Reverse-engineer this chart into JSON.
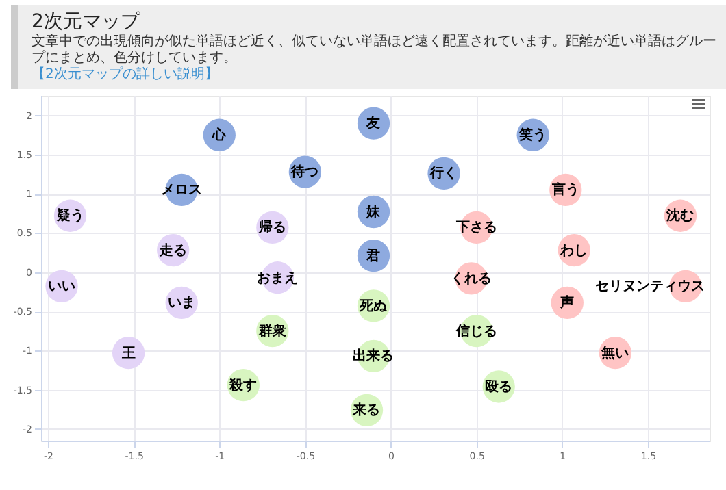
{
  "chart_data": {
    "type": "scatter",
    "title": "2次元マップ",
    "subtitle": "文章中での出現傾向が似た単語ほど近く、似ていない単語ほど遠く配置されています。距離が近い単語はグループにまとめ、色分けしています。",
    "xlim": [
      -2.04,
      1.86
    ],
    "ylim": [
      -2.15,
      2.25
    ],
    "xticks": [
      -2,
      -1.5,
      -1,
      -0.5,
      0,
      0.5,
      1,
      1.5
    ],
    "yticks": [
      -2,
      -1.5,
      -1,
      -0.5,
      0,
      0.5,
      1,
      1.5,
      2
    ],
    "grid": true,
    "marker": "circle",
    "series": [
      {
        "color": "#8eaadf",
        "x": [
          -0.1,
          0.83,
          -1.0,
          -0.5,
          0.31,
          -1.22,
          -0.1,
          -0.1
        ],
        "values": [
          1.9,
          1.75,
          1.75,
          1.28,
          1.26,
          1.05,
          0.77,
          0.21
        ]
      },
      {
        "color": "#ffc4c4",
        "x": [
          1.02,
          0.5,
          1.69,
          1.07,
          0.47,
          1.72,
          1.03,
          1.31
        ],
        "values": [
          1.05,
          0.57,
          0.72,
          0.28,
          -0.08,
          -0.18,
          -0.39,
          -1.03
        ]
      },
      {
        "color": "#e3d4f7",
        "x": [
          -1.87,
          -0.69,
          -1.27,
          -0.66,
          -1.92,
          -1.22,
          -1.53
        ],
        "values": [
          0.72,
          0.57,
          0.28,
          -0.07,
          -0.18,
          -0.39,
          -1.03
        ]
      },
      {
        "color": "#d8f5c0",
        "x": [
          -0.1,
          -0.69,
          0.5,
          -0.1,
          -0.86,
          0.63,
          -0.14
        ],
        "values": [
          -0.43,
          -0.75,
          -0.75,
          -1.07,
          -1.44,
          -1.46,
          -1.76
        ]
      }
    ],
    "annotations": [
      "【2次元マップの詳しい説明】",
      {
        "text": "友",
        "x": -0.1,
        "y": 1.9
      },
      {
        "text": "笑う",
        "x": 0.83,
        "y": 1.75
      },
      {
        "text": "心",
        "x": -1.0,
        "y": 1.75
      },
      {
        "text": "待つ",
        "x": -0.5,
        "y": 1.28
      },
      {
        "text": "行く",
        "x": 0.31,
        "y": 1.26
      },
      {
        "text": "メロス",
        "x": -1.22,
        "y": 1.05
      },
      {
        "text": "妹",
        "x": -0.1,
        "y": 0.77
      },
      {
        "text": "君",
        "x": -0.1,
        "y": 0.21
      },
      {
        "text": "言う",
        "x": 1.02,
        "y": 1.05
      },
      {
        "text": "下さる",
        "x": 0.5,
        "y": 0.57
      },
      {
        "text": "沈む",
        "x": 1.69,
        "y": 0.72
      },
      {
        "text": "わし",
        "x": 1.07,
        "y": 0.28
      },
      {
        "text": "くれる",
        "x": 0.47,
        "y": -0.08
      },
      {
        "text": "セリヌンティウス",
        "x": 1.72,
        "y": -0.18
      },
      {
        "text": "声",
        "x": 1.03,
        "y": -0.39
      },
      {
        "text": "無い",
        "x": 1.31,
        "y": -1.03
      },
      {
        "text": "疑う",
        "x": -1.87,
        "y": 0.72
      },
      {
        "text": "帰る",
        "x": -0.69,
        "y": 0.57
      },
      {
        "text": "走る",
        "x": -1.27,
        "y": 0.28
      },
      {
        "text": "おまえ",
        "x": -0.66,
        "y": -0.07
      },
      {
        "text": "いい",
        "x": -1.92,
        "y": -0.18
      },
      {
        "text": "いま",
        "x": -1.22,
        "y": -0.39
      },
      {
        "text": "王",
        "x": -1.53,
        "y": -1.03
      },
      {
        "text": "死ぬ",
        "x": -0.1,
        "y": -0.43
      },
      {
        "text": "群衆",
        "x": -0.69,
        "y": -0.75
      },
      {
        "text": "信じる",
        "x": 0.5,
        "y": -0.75
      },
      {
        "text": "出来る",
        "x": -0.1,
        "y": -1.07
      },
      {
        "text": "殺す",
        "x": -0.86,
        "y": -1.44
      },
      {
        "text": "殴る",
        "x": 0.63,
        "y": -1.46
      },
      {
        "text": "来る",
        "x": -0.14,
        "y": -1.76
      }
    ]
  }
}
